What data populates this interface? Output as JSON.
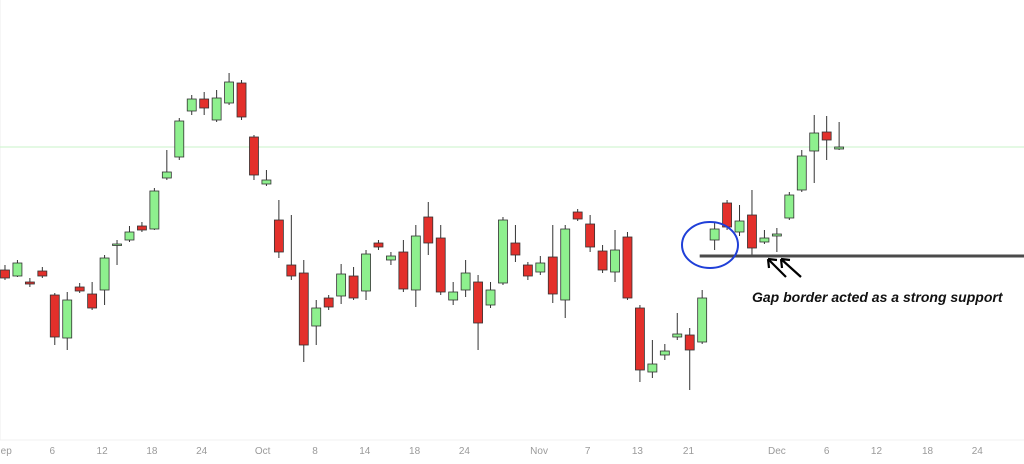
{
  "chart_data": {
    "type": "candlestick",
    "x": [
      0,
      1,
      2,
      3,
      4,
      5,
      6,
      7,
      8,
      9,
      10,
      11,
      12,
      13,
      14,
      15,
      16,
      17,
      18,
      19,
      20,
      21,
      22,
      23,
      24,
      25,
      26,
      27,
      28,
      29,
      30,
      31,
      32,
      33,
      34,
      35,
      36,
      37,
      38,
      39,
      40,
      41,
      42,
      43,
      44,
      45,
      46,
      47,
      48,
      49,
      50,
      51,
      52,
      53,
      54,
      55,
      56,
      57,
      58,
      59,
      60,
      61,
      62,
      63,
      64,
      65,
      66,
      67
    ],
    "open": [
      194,
      188,
      182,
      193,
      169,
      126,
      177,
      170,
      174,
      219,
      224,
      238,
      235,
      286,
      307,
      353,
      365,
      344,
      361,
      381,
      327,
      280,
      244,
      199,
      191,
      138,
      166,
      168,
      188,
      173,
      221,
      204,
      212,
      174,
      247,
      226,
      164,
      174,
      182,
      159,
      181,
      221,
      199,
      192,
      207,
      164,
      252,
      240,
      213,
      192,
      227,
      156,
      92,
      109,
      127,
      129,
      122,
      224,
      261,
      232,
      249,
      222,
      228,
      246,
      274,
      313,
      332,
      315
    ],
    "high": [
      199,
      204,
      186,
      197,
      171,
      172,
      181,
      182,
      209,
      224,
      238,
      242,
      276,
      314,
      346,
      369,
      372,
      374,
      391,
      384,
      329,
      294,
      264,
      249,
      204,
      164,
      169,
      200,
      197,
      214,
      224,
      212,
      224,
      239,
      262,
      239,
      182,
      204,
      189,
      182,
      247,
      239,
      202,
      208,
      239,
      239,
      255,
      249,
      219,
      234,
      232,
      159,
      124,
      120,
      151,
      136,
      174,
      242,
      264,
      259,
      274,
      234,
      236,
      272,
      314,
      349,
      348,
      342
    ],
    "low": [
      184,
      187,
      177,
      186,
      119,
      114,
      171,
      154,
      159,
      199,
      222,
      232,
      234,
      284,
      304,
      349,
      349,
      342,
      359,
      344,
      284,
      278,
      206,
      184,
      102,
      119,
      154,
      160,
      164,
      164,
      214,
      199,
      172,
      157,
      209,
      169,
      159,
      167,
      114,
      156,
      179,
      202,
      184,
      189,
      161,
      146,
      243,
      212,
      191,
      182,
      164,
      82,
      86,
      104,
      124,
      74,
      120,
      214,
      234,
      228,
      209,
      220,
      212,
      244,
      272,
      281,
      304,
      314
    ],
    "close": [
      186,
      201,
      180,
      188,
      127,
      164,
      173,
      156,
      206,
      220,
      232,
      234,
      273,
      292,
      343,
      365,
      356,
      366,
      382,
      347,
      289,
      284,
      212,
      188,
      119,
      156,
      157,
      190,
      166,
      210,
      217,
      208,
      175,
      228,
      221,
      172,
      172,
      191,
      141,
      174,
      244,
      209,
      188,
      201,
      170,
      235,
      245,
      217,
      194,
      214,
      166,
      94,
      100,
      113,
      130,
      114,
      166,
      235,
      237,
      243,
      216,
      226,
      230,
      269,
      308,
      331,
      324,
      317
    ],
    "up_color": "#8ef08e",
    "down_color": "#e3302b",
    "xlim": [
      -0.4,
      81.85
    ],
    "ylim": [
      24,
      464
    ],
    "xticks": [
      {
        "value": 0.1,
        "label": "ep"
      },
      {
        "value": 3.8,
        "label": "6"
      },
      {
        "value": 7.8,
        "label": "12"
      },
      {
        "value": 11.8,
        "label": "18"
      },
      {
        "value": 15.8,
        "label": "24"
      },
      {
        "value": 20.7,
        "label": "Oct"
      },
      {
        "value": 24.9,
        "label": "8"
      },
      {
        "value": 28.9,
        "label": "14"
      },
      {
        "value": 32.9,
        "label": "18"
      },
      {
        "value": 36.9,
        "label": "24"
      },
      {
        "value": 42.9,
        "label": "Nov"
      },
      {
        "value": 46.8,
        "label": "7"
      },
      {
        "value": 50.8,
        "label": "13"
      },
      {
        "value": 54.9,
        "label": "21"
      },
      {
        "value": 62.0,
        "label": "Dec"
      },
      {
        "value": 66.0,
        "label": "6"
      },
      {
        "value": 70.0,
        "label": "12"
      },
      {
        "value": 74.1,
        "label": "18"
      },
      {
        "value": 78.1,
        "label": "24"
      }
    ],
    "reference_line": {
      "value": 317,
      "color": "#c9f3c9"
    },
    "support_line": {
      "value": 208,
      "x_start": 55.8,
      "color": "#4a4a4a"
    },
    "annotation": "Gap border acted as a strong support"
  }
}
